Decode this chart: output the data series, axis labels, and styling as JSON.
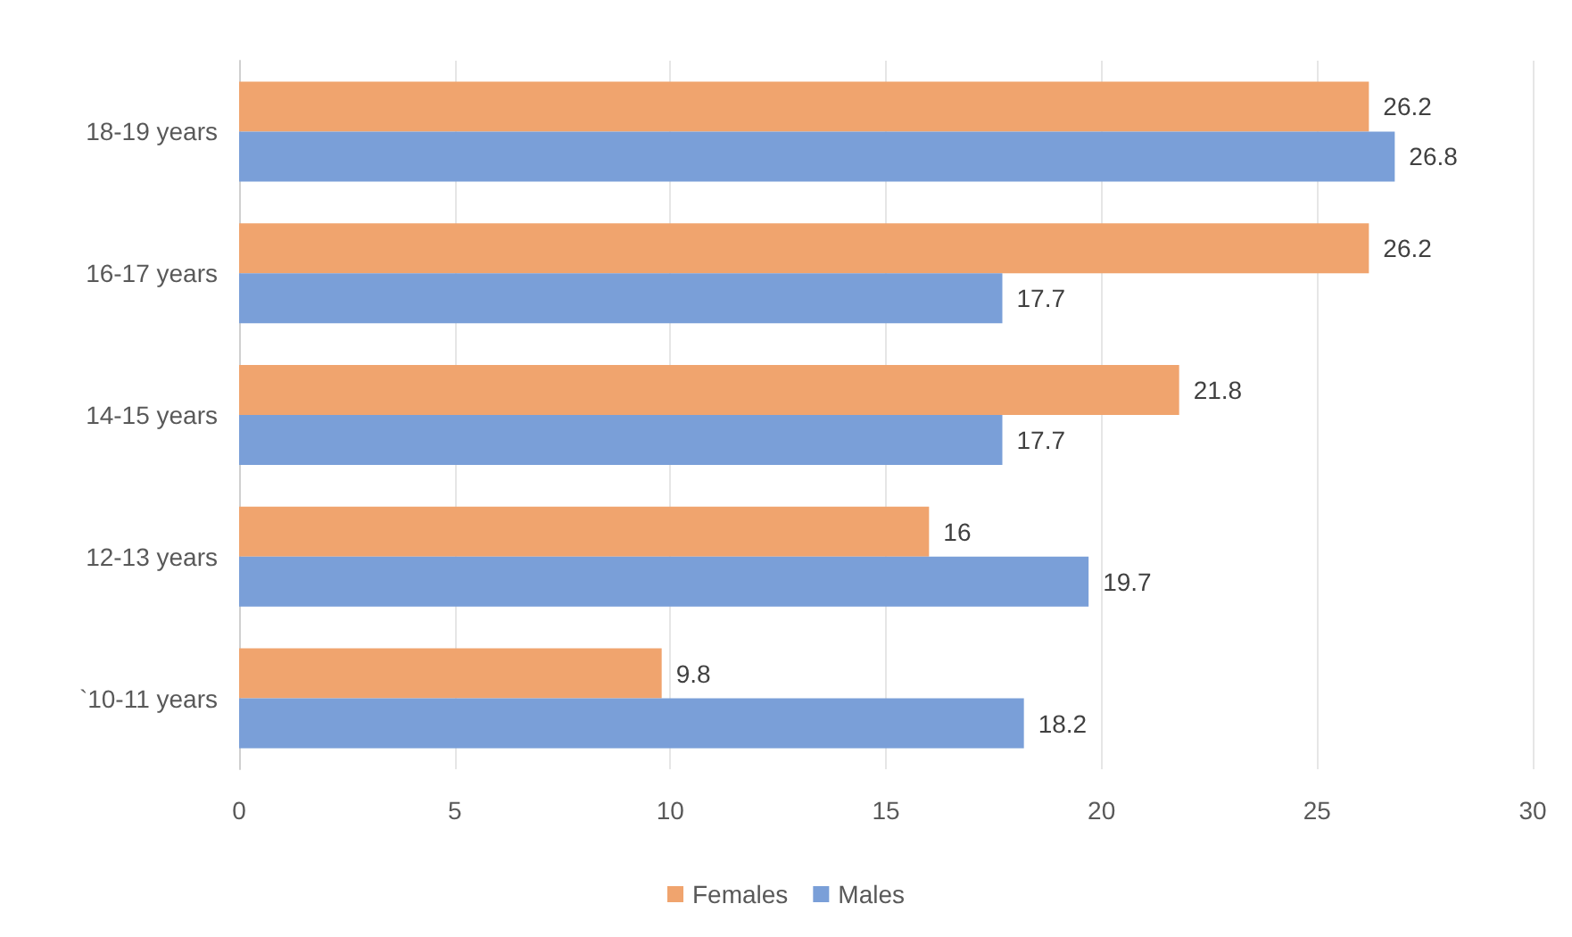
{
  "chart_data": {
    "type": "bar",
    "orientation": "horizontal",
    "categories": [
      "18-19 years",
      "16-17 years",
      "14-15 years",
      "12-13 years",
      "`10-11 years"
    ],
    "series": [
      {
        "name": "Females",
        "color": "#f0a46e",
        "values": [
          26.2,
          26.2,
          21.8,
          16,
          9.8
        ]
      },
      {
        "name": "Males",
        "color": "#7a9fd8",
        "values": [
          26.8,
          17.7,
          17.7,
          19.7,
          18.2
        ]
      }
    ],
    "xlim": [
      0,
      30
    ],
    "xticks": [
      0,
      5,
      10,
      15,
      20,
      25,
      30
    ],
    "grid": "x",
    "legend": "bottom",
    "data_labels": true
  }
}
